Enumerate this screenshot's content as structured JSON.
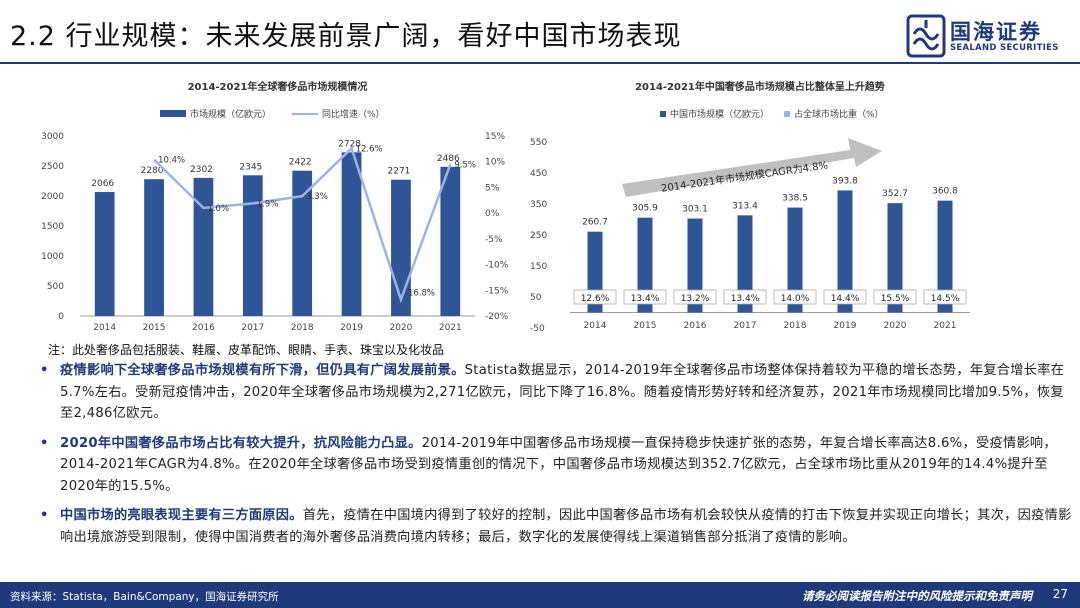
{
  "header": {
    "title": "2.2 行业规模：未来发展前景广阔，看好中国市场表现",
    "logo_cn": "国海证券",
    "logo_en": "SEALAND SECURITIES"
  },
  "colors": {
    "bar": "#2f5597",
    "line": "#9db3e3",
    "accent": "#1f3a7a",
    "pct_box": "#ffffff"
  },
  "chart_data": [
    {
      "type": "bar",
      "title": "2014-2021年全球奢侈品市场规模情况",
      "categories": [
        "2014",
        "2015",
        "2016",
        "2017",
        "2018",
        "2019",
        "2020",
        "2021"
      ],
      "series": [
        {
          "name": "市场规模（亿欧元）",
          "type": "bar",
          "values": [
            2066,
            2280,
            2302,
            2345,
            2422,
            2728,
            2271,
            2486
          ]
        },
        {
          "name": "同比增速（%）",
          "type": "line",
          "axis": "right",
          "values": [
            null,
            10.4,
            1.0,
            1.9,
            3.3,
            12.6,
            -16.8,
            9.5
          ],
          "labels": [
            "",
            "10.4%",
            "1.0%",
            "1.9%",
            "3.3%",
            "12.6%",
            "-16.8%",
            "9.5%"
          ]
        }
      ],
      "ylim": [
        0,
        3000
      ],
      "yticks": [
        "0",
        "500",
        "1000",
        "1500",
        "2000",
        "2500",
        "3000"
      ],
      "y2lim": [
        -20,
        15
      ],
      "y2ticks": [
        "-20%",
        "-15%",
        "-10%",
        "-5%",
        "0%",
        "5%",
        "10%",
        "15%"
      ]
    },
    {
      "type": "bar",
      "title": "2014-2021年中国奢侈品市场规模占比整体呈上升趋势",
      "categories": [
        "2014",
        "2015",
        "2016",
        "2017",
        "2018",
        "2019",
        "2020",
        "2021"
      ],
      "series": [
        {
          "name": "中国市场规模（亿欧元）",
          "values": [
            260.7,
            305.9,
            303.1,
            313.4,
            338.5,
            393.8,
            352.7,
            360.8
          ],
          "labels": [
            "260.7",
            "305.9",
            "303.1",
            "313.4",
            "338.5",
            "393.8",
            "352.7",
            "360.8"
          ]
        },
        {
          "name": "占全球市场比重（%）",
          "values": [
            12.6,
            13.4,
            13.2,
            13.4,
            14.0,
            14.4,
            15.5,
            14.5
          ],
          "labels": [
            "12.6%",
            "13.4%",
            "13.2%",
            "13.4%",
            "14.0%",
            "14.4%",
            "15.5%",
            "14.5%"
          ]
        }
      ],
      "ylim": [
        -50,
        550
      ],
      "yticks": [
        "-50",
        "50",
        "150",
        "250",
        "350",
        "450",
        "550"
      ],
      "annotation": "2014-2021年市场规模CAGR为4.8%"
    }
  ],
  "note": "注：此处奢侈品包括服装、鞋履、皮革配饰、眼睛、手表、珠宝以及化妆品",
  "bullets": [
    {
      "lead": "疫情影响下全球奢侈品市场规模有所下滑，但仍具有广阔发展前景。",
      "text": "Statista数据显示，2014-2019年全球奢侈品市场整体保持着较为平稳的增长态势，年复合增长率在5.7%左右。受新冠疫情冲击，2020年全球奢侈品市场规模为2,271亿欧元，同比下降了16.8%。随着疫情形势好转和经济复苏，2021年市场规模同比增加9.5%，恢复至2,486亿欧元。"
    },
    {
      "lead": "2020年中国奢侈品市场占比有较大提升，抗风险能力凸显。",
      "text": "2014-2019年中国奢侈品市场规模一直保持稳步快速扩张的态势，年复合增长率高达8.6%，受疫情影响，2014-2021年CAGR为4.8%。在2020年全球奢侈品市场受到疫情重创的情况下，中国奢侈品市场规模达到352.7亿欧元，占全球市场比重从2019年的14.4%提升至2020年的15.5%。"
    },
    {
      "lead": "中国市场的亮眼表现主要有三方面原因。",
      "text": "首先，疫情在中国境内得到了较好的控制，因此中国奢侈品市场有机会较快从疫情的打击下恢复并实现正向增长；其次，因疫情影响出境旅游受到限制，使得中国消费者的海外奢侈品消费向境内转移；最后，数字化的发展使得线上渠道销售部分抵消了疫情的影响。"
    }
  ],
  "footer": {
    "source": "资料来源：Statista，Bain&Company，国海证券研究所",
    "disclaimer": "请务必阅读报告附注中的风险提示和免责声明",
    "page": "27"
  }
}
